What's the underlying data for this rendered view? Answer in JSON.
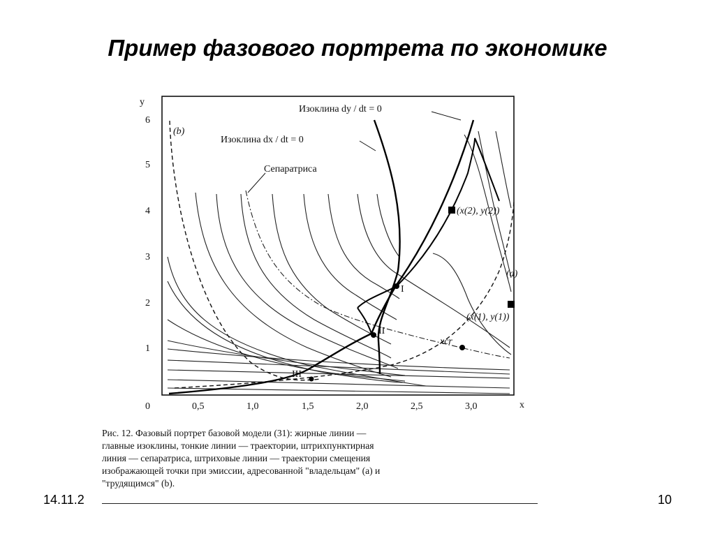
{
  "slide": {
    "title": "Пример фазового портрета по экономике",
    "date": "14.11.2",
    "page_number": "10"
  },
  "figure": {
    "axis_x_label": "x",
    "axis_y_label": "y",
    "x_ticks": [
      "0",
      "0,5",
      "1,0",
      "1,5",
      "2,0",
      "2,5",
      "3,0"
    ],
    "y_ticks": [
      "1",
      "2",
      "3",
      "4",
      "5",
      "6"
    ],
    "labels": {
      "isocline_dy": "Изоклина dy / dt = 0",
      "isocline_dx": "Изоклина dx / dt = 0",
      "separatrix": "Сепаратриса",
      "curve_a": "(a)",
      "curve_b": "(b)",
      "point_1_math": "(x(1), y(1))",
      "point_2_math": "(x(2), y(2))",
      "point_I": "I",
      "point_II": "II",
      "point_III": "III",
      "x_cr": "xcr"
    },
    "caption_lines": [
      "Рис. 12. Фазовый портрет базовой модели (31): жирные линии —",
      "главные изоклины, тонкие линии — траектории, штрихпунктирная",
      "линия — сепаратриса, штриховые линии — траектории смещения",
      "изображающей точки при эмиссии, адресованной \"владельцам\" (a) и",
      "\"трудящимся\" (b)."
    ]
  }
}
